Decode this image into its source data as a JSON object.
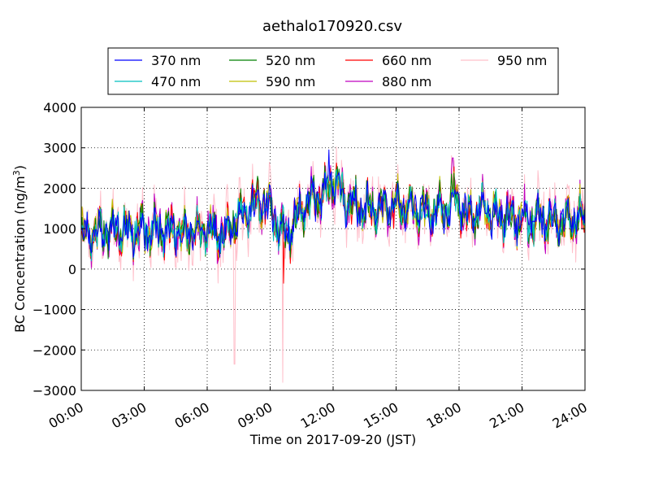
{
  "chart_data": {
    "type": "line",
    "title": "aethalo170920.csv",
    "xlabel": "Time on 2017-09-20 (JST)",
    "ylabel_main": "BC Concentration (ng/m",
    "ylabel_sup": "3",
    "ylabel_end": ")",
    "x_unit": "hour of day",
    "xlim": [
      0,
      24
    ],
    "ylim": [
      -3000,
      4000
    ],
    "xticks": [
      0,
      3,
      6,
      9,
      12,
      15,
      18,
      21,
      24
    ],
    "xtick_labels": [
      "00:00",
      "03:00",
      "06:00",
      "09:00",
      "12:00",
      "15:00",
      "18:00",
      "21:00",
      "24:00"
    ],
    "yticks": [
      -3000,
      -2000,
      -1000,
      0,
      1000,
      2000,
      3000,
      4000
    ],
    "ytick_labels": [
      "−3000",
      "−2000",
      "−1000",
      "0",
      "1000",
      "2000",
      "3000",
      "4000"
    ],
    "grid": true,
    "legend_position": "top-center",
    "series": [
      {
        "name": "370 nm",
        "color": "#0000ff",
        "amp": 430,
        "seed": 11
      },
      {
        "name": "470 nm",
        "color": "#00bfbf",
        "amp": 440,
        "seed": 23
      },
      {
        "name": "520 nm",
        "color": "#008000",
        "amp": 460,
        "seed": 37
      },
      {
        "name": "590 nm",
        "color": "#bfbf00",
        "amp": 470,
        "seed": 41
      },
      {
        "name": "660 nm",
        "color": "#ff0000",
        "amp": 490,
        "seed": 53
      },
      {
        "name": "880 nm",
        "color": "#bf00bf",
        "amp": 540,
        "seed": 67
      },
      {
        "name": "950 nm",
        "color": "#ffc0cb",
        "amp": 780,
        "seed": 79
      }
    ],
    "baseline": {
      "x": [
        0,
        1,
        2,
        3,
        4,
        5,
        6,
        6.7,
        7.5,
        8.5,
        9,
        9.4,
        9.8,
        10.5,
        11,
        11.7,
        12,
        12.5,
        13.5,
        14.5,
        15.5,
        16.5,
        17.5,
        17.8,
        18.3,
        19,
        20,
        21,
        22,
        23,
        24
      ],
      "y": [
        900,
        950,
        1000,
        950,
        950,
        900,
        1000,
        800,
        1300,
        1700,
        1500,
        1050,
        800,
        1500,
        1700,
        1900,
        2300,
        1700,
        1500,
        1500,
        1550,
        1400,
        1500,
        1900,
        1300,
        1450,
        1300,
        1250,
        1200,
        1150,
        1300
      ]
    },
    "spikes": [
      {
        "x": 7.3,
        "y": -2350,
        "series": "950 nm"
      },
      {
        "x": 9.6,
        "y": -2800,
        "series": "950 nm"
      },
      {
        "x": 9.65,
        "y": -350,
        "series": "660 nm"
      },
      {
        "x": 11.8,
        "y": 2950,
        "series": "370 nm"
      },
      {
        "x": 17.7,
        "y": 2750,
        "series": "880 nm"
      }
    ]
  }
}
